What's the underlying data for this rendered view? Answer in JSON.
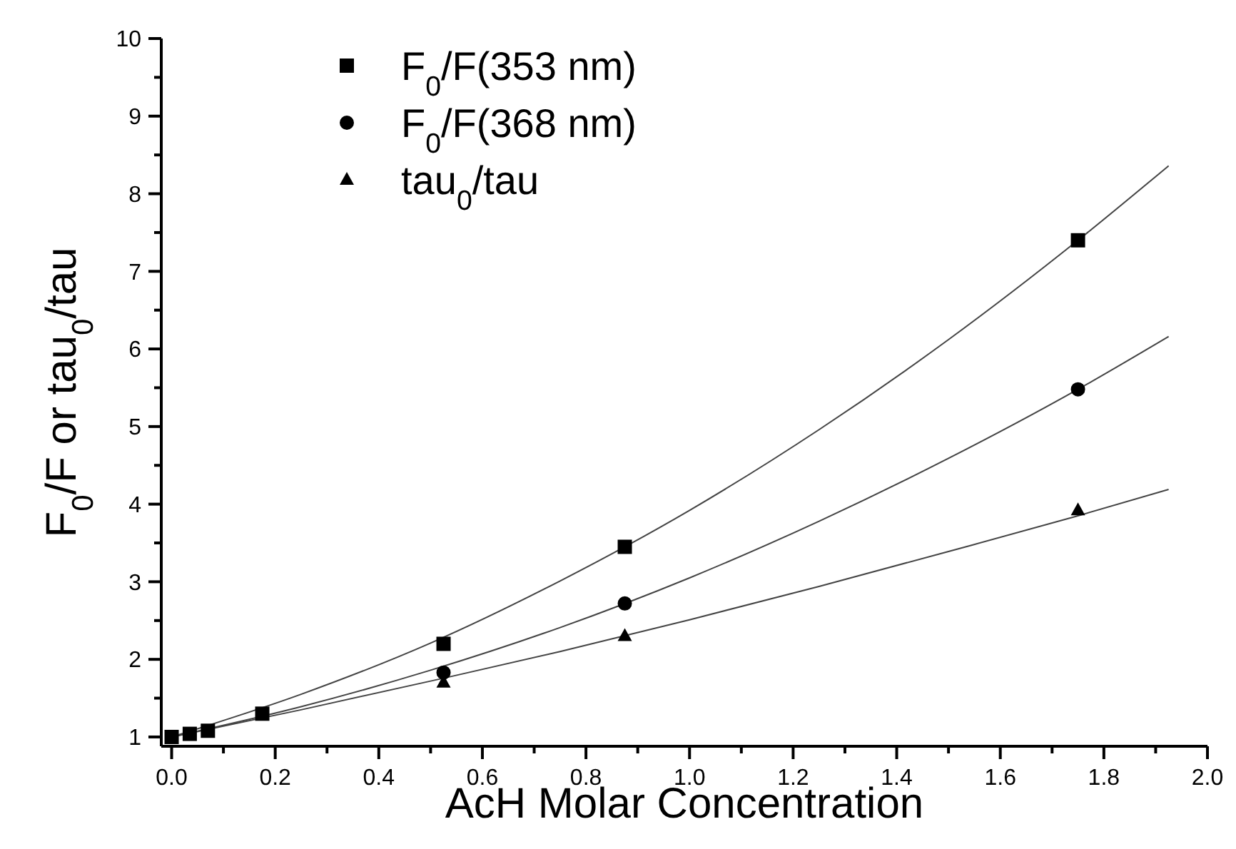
{
  "chart_data": {
    "type": "scatter",
    "xlabel": "AcH Molar Concentration",
    "ylabel": "F$_{0}$/F or tau$_{0}$/tau",
    "xlim": [
      -0.02,
      2.0
    ],
    "ylim": [
      0.88,
      10
    ],
    "xticks": [
      {
        "value": 0,
        "label": "0.0"
      },
      {
        "value": 0.1,
        "label": null
      },
      {
        "value": 0.2,
        "label": "0.2"
      },
      {
        "value": 0.3,
        "label": null
      },
      {
        "value": 0.4,
        "label": "0.4"
      },
      {
        "value": 0.5,
        "label": null
      },
      {
        "value": 0.6,
        "label": "0.6"
      },
      {
        "value": 0.7,
        "label": null
      },
      {
        "value": 0.8,
        "label": "0.8"
      },
      {
        "value": 0.9,
        "label": null
      },
      {
        "value": 1,
        "label": "1.0"
      },
      {
        "value": 1.1,
        "label": null
      },
      {
        "value": 1.2,
        "label": "1.2"
      },
      {
        "value": 1.3,
        "label": null
      },
      {
        "value": 1.4,
        "label": "1.4"
      },
      {
        "value": 1.5,
        "label": null
      },
      {
        "value": 1.6,
        "label": "1.6"
      },
      {
        "value": 1.7,
        "label": null
      },
      {
        "value": 1.8,
        "label": "1.8"
      },
      {
        "value": 1.9,
        "label": null
      },
      {
        "value": 2,
        "label": "2.0"
      }
    ],
    "yticks": [
      1,
      {
        "value": 1.5,
        "label": null
      },
      2,
      {
        "value": 2.5,
        "label": null
      },
      3,
      {
        "value": 3.5,
        "label": null
      },
      4,
      {
        "value": 4.5,
        "label": null
      },
      5,
      {
        "value": 5.5,
        "label": null
      },
      6,
      {
        "value": 6.5,
        "label": null
      },
      7,
      {
        "value": 7.5,
        "label": null
      },
      8,
      {
        "value": 8.5,
        "label": null
      },
      9,
      {
        "value": 9.5,
        "label": null
      },
      10
    ],
    "grid": false,
    "legend": "top left",
    "series": [
      {
        "name": "F$_{0}$/F(353 nm)",
        "color": "#000000",
        "marker": "square",
        "x": [
          0,
          0.035,
          0.07,
          0.175,
          0.525,
          0.875,
          1.75
        ],
        "values": [
          1,
          1.04,
          1.08,
          1.3,
          2.2,
          3.45,
          7.4
        ]
      },
      {
        "name": "F$_{0}$/F(368 nm)",
        "color": "#000000",
        "marker": "circle",
        "x": [
          0.525,
          0.875,
          1.75
        ],
        "values": [
          1.83,
          2.72,
          5.48
        ]
      },
      {
        "name": "tau$_{0}$/tau",
        "color": "#000000",
        "marker": "triangle",
        "x": [
          0.525,
          0.875,
          1.75
        ],
        "values": [
          1.7,
          2.3,
          3.92
        ]
      },
      {
        "type": "line",
        "color": "#444444",
        "marker": "none",
        "line_style": "solid",
        "x": [
          0,
          0.25,
          0.5,
          0.75,
          1,
          1.25,
          1.5,
          1.75,
          1.925
        ],
        "values": [
          1,
          1.55,
          2.21,
          3.01,
          3.92,
          4.96,
          6.12,
          7.4,
          8.36
        ]
      },
      {
        "type": "line",
        "color": "#444444",
        "marker": "none",
        "line_style": "solid",
        "x": [
          0,
          0.25,
          0.5,
          0.75,
          1,
          1.25,
          1.5,
          1.75,
          1.925
        ],
        "values": [
          1,
          1.39,
          1.86,
          2.41,
          3.05,
          3.78,
          4.59,
          5.48,
          6.16
        ]
      },
      {
        "type": "line",
        "color": "#444444",
        "marker": "none",
        "line_style": "solid",
        "x": [
          0,
          0.25,
          0.5,
          0.75,
          1,
          1.25,
          1.5,
          1.75,
          1.925
        ],
        "values": [
          1,
          1.35,
          1.72,
          2.1,
          2.51,
          2.94,
          3.39,
          3.85,
          4.19
        ]
      }
    ]
  }
}
